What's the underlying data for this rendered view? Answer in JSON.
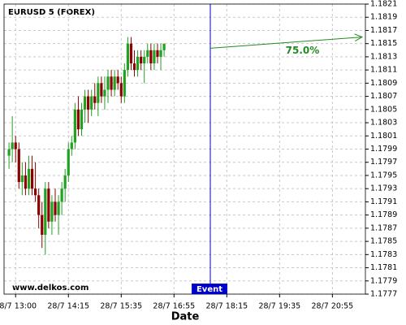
{
  "chart_data": {
    "type": "candlestick",
    "title": "EURUSD 5 (FOREX)",
    "watermark": "www.delkos.com",
    "xlabel": "Date",
    "xlim": [
      -3.5,
      106
    ],
    "xticks": [
      {
        "value": 0,
        "label": "28/7 13:00"
      },
      {
        "value": 16,
        "label": "28/7 14:15"
      },
      {
        "value": 32,
        "label": "28/7 15:35"
      },
      {
        "value": 48,
        "label": "28/7 16:55"
      },
      {
        "value": 64,
        "label": "28/7 18:15"
      },
      {
        "value": 80,
        "label": "28/7 19:35"
      },
      {
        "value": 96,
        "label": "28/7 20:55"
      }
    ],
    "ylim": [
      1.1777,
      1.1821
    ],
    "yticks": [
      1.1777,
      1.1779,
      1.1781,
      1.1783,
      1.1785,
      1.1787,
      1.1789,
      1.1791,
      1.1793,
      1.1795,
      1.1797,
      1.1799,
      1.1801,
      1.1803,
      1.1805,
      1.1807,
      1.1809,
      1.1811,
      1.1813,
      1.1815,
      1.1817,
      1.1819,
      1.1821
    ],
    "grid": true,
    "up_color": "#22a022",
    "down_color": "#8b0000",
    "x": [
      -2,
      -1,
      0,
      1,
      2,
      3,
      4,
      5,
      6,
      7,
      8,
      9,
      10,
      11,
      12,
      13,
      14,
      15,
      16,
      17,
      18,
      19,
      20,
      21,
      22,
      23,
      24,
      25,
      26,
      27,
      28,
      29,
      30,
      31,
      32,
      33,
      34,
      35,
      36,
      37,
      38,
      39,
      40,
      41,
      42,
      43,
      44,
      45
    ],
    "open": [
      1.1798,
      1.1799,
      1.18,
      1.1799,
      1.1794,
      1.1795,
      1.1793,
      1.1796,
      1.1793,
      1.1792,
      1.1789,
      1.1786,
      1.1793,
      1.1788,
      1.1791,
      1.1789,
      1.1791,
      1.1793,
      1.1795,
      1.1799,
      1.18,
      1.1805,
      1.1802,
      1.1805,
      1.1807,
      1.1805,
      1.1807,
      1.1806,
      1.1809,
      1.1807,
      1.1808,
      1.181,
      1.1808,
      1.181,
      1.1809,
      1.1807,
      1.1811,
      1.1815,
      1.1812,
      1.1811,
      1.1813,
      1.1812,
      1.1813,
      1.1814,
      1.1812,
      1.1814,
      1.1813,
      1.1814
    ],
    "high": [
      1.18,
      1.1804,
      1.1801,
      1.18,
      1.1797,
      1.1797,
      1.1798,
      1.1798,
      1.1797,
      1.1793,
      1.1791,
      1.1794,
      1.1794,
      1.1792,
      1.1793,
      1.1792,
      1.1794,
      1.1796,
      1.18,
      1.1801,
      1.1806,
      1.1807,
      1.1806,
      1.1808,
      1.1808,
      1.1808,
      1.1809,
      1.181,
      1.181,
      1.181,
      1.1811,
      1.1811,
      1.1811,
      1.1811,
      1.181,
      1.1812,
      1.1816,
      1.1816,
      1.1814,
      1.1814,
      1.1814,
      1.1814,
      1.1815,
      1.1815,
      1.1815,
      1.1815,
      1.1815,
      1.1815
    ],
    "low": [
      1.1796,
      1.1797,
      1.1797,
      1.1793,
      1.1792,
      1.1792,
      1.1792,
      1.1792,
      1.1791,
      1.1787,
      1.1784,
      1.1783,
      1.1787,
      1.1786,
      1.1788,
      1.1786,
      1.1789,
      1.1791,
      1.1794,
      1.1798,
      1.1799,
      1.1801,
      1.1801,
      1.1803,
      1.1803,
      1.1804,
      1.1805,
      1.1804,
      1.1806,
      1.1805,
      1.1806,
      1.1807,
      1.1807,
      1.1808,
      1.1806,
      1.1806,
      1.181,
      1.1811,
      1.181,
      1.181,
      1.1811,
      1.1809,
      1.1812,
      1.1811,
      1.1811,
      1.1812,
      1.1811,
      1.1813
    ],
    "close": [
      1.1799,
      1.18,
      1.1799,
      1.1794,
      1.1795,
      1.1793,
      1.1796,
      1.1793,
      1.1792,
      1.1789,
      1.1786,
      1.1793,
      1.1788,
      1.1791,
      1.1789,
      1.1791,
      1.1793,
      1.1795,
      1.1799,
      1.18,
      1.1805,
      1.1802,
      1.1805,
      1.1807,
      1.1805,
      1.1807,
      1.1806,
      1.1809,
      1.1807,
      1.1808,
      1.181,
      1.1808,
      1.181,
      1.1809,
      1.1807,
      1.1811,
      1.1815,
      1.1812,
      1.1811,
      1.1813,
      1.1812,
      1.1813,
      1.1814,
      1.1812,
      1.1814,
      1.1813,
      1.1814,
      1.1815
    ],
    "event": {
      "x": 59,
      "label": "Event",
      "color": "#0000cc"
    },
    "projection": {
      "x": [
        59,
        105
      ],
      "y": [
        1.18143,
        1.1816
      ],
      "label": "75.0%",
      "color": "#228b22"
    }
  }
}
